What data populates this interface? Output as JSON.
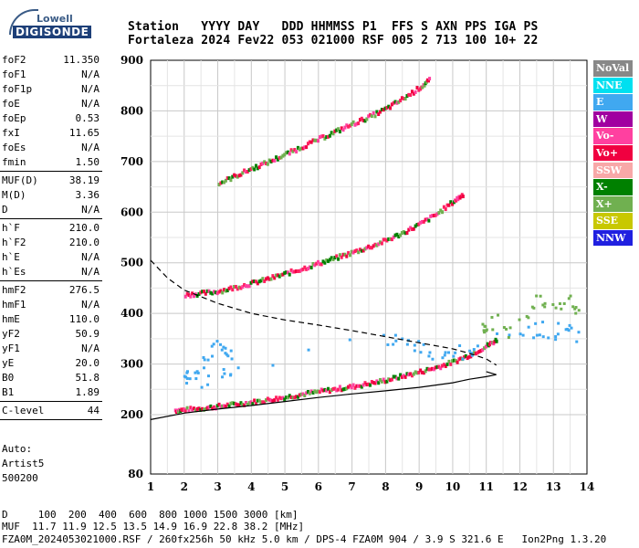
{
  "logo": {
    "line1": "Lowell",
    "line2": "DIGISONDE"
  },
  "header": {
    "line1": "Station   YYYY DAY   DDD HHMMSS P1  FFS S AXN PPS IGA PS",
    "line2": "Fortaleza 2024 Fev22 053 021000 RSF 005 2 713 100 10+ 22"
  },
  "params": [
    [
      {
        "k": "foF2",
        "v": "11.350"
      },
      {
        "k": "foF1",
        "v": "N/A"
      },
      {
        "k": "foF1p",
        "v": "N/A"
      },
      {
        "k": "foE",
        "v": "N/A"
      },
      {
        "k": "foEp",
        "v": "0.53"
      },
      {
        "k": "fxI",
        "v": "11.65"
      },
      {
        "k": "foEs",
        "v": "N/A"
      },
      {
        "k": "fmin",
        "v": "1.50"
      }
    ],
    [
      {
        "k": "MUF(D)",
        "v": "38.19"
      },
      {
        "k": "M(D)",
        "v": "3.36"
      },
      {
        "k": "D",
        "v": "N/A"
      }
    ],
    [
      {
        "k": "h`F",
        "v": "210.0"
      },
      {
        "k": "h`F2",
        "v": "210.0"
      },
      {
        "k": "h`E",
        "v": "N/A"
      },
      {
        "k": "h`Es",
        "v": "N/A"
      }
    ],
    [
      {
        "k": "hmF2",
        "v": "276.5"
      },
      {
        "k": "hmF1",
        "v": "N/A"
      },
      {
        "k": "hmE",
        "v": "110.0"
      },
      {
        "k": "yF2",
        "v": "50.9"
      },
      {
        "k": "yF1",
        "v": "N/A"
      },
      {
        "k": "yE",
        "v": "20.0"
      },
      {
        "k": "B0",
        "v": "51.8"
      },
      {
        "k": "B1",
        "v": "1.89"
      }
    ],
    [
      {
        "k": "C-level",
        "v": "44"
      }
    ]
  ],
  "auto": [
    "Auto:",
    "Artist5",
    "500200"
  ],
  "legend": [
    {
      "label": "NoVal",
      "color": "#888888"
    },
    {
      "label": "NNE",
      "color": "#00e0f0"
    },
    {
      "label": "E",
      "color": "#40a8f0"
    },
    {
      "label": "W",
      "color": "#a000a0"
    },
    {
      "label": "Vo-",
      "color": "#ff40a0"
    },
    {
      "label": "Vo+",
      "color": "#f00040"
    },
    {
      "label": "SSW",
      "color": "#f8a8a8"
    },
    {
      "label": "X-",
      "color": "#008000"
    },
    {
      "label": "X+",
      "color": "#70b050"
    },
    {
      "label": "SSE",
      "color": "#c8c800"
    },
    {
      "label": "NNW",
      "color": "#2020e0"
    }
  ],
  "footer": {
    "line1": "D     100  200  400  600  800 1000 1500 3000 [km]",
    "line2": "MUF  11.7 11.9 12.5 13.5 14.9 16.9 22.8 38.2 [MHz]",
    "line3": "FZA0M_2024053021000.RSF / 260fx256h 50 kHz 5.0 km / DPS-4 FZA0M 904 / 3.9 S 321.6 E   Ion2Png 1.3.20"
  },
  "chart_data": {
    "type": "scatter",
    "xlim": [
      1,
      14
    ],
    "ylim": [
      80,
      900
    ],
    "x_ticks": [
      1,
      2,
      3,
      4,
      5,
      6,
      7,
      8,
      9,
      10,
      11,
      12,
      13,
      14
    ],
    "y_ticks": [
      80,
      200,
      300,
      400,
      500,
      600,
      700,
      800,
      900
    ],
    "grid": true,
    "series": [
      {
        "key": "o_trace",
        "color": "#ff2060",
        "points": [
          [
            1.7,
            212
          ],
          [
            2.0,
            213
          ],
          [
            2.5,
            216
          ],
          [
            3.0,
            220
          ],
          [
            3.5,
            224
          ],
          [
            4.0,
            228
          ],
          [
            4.5,
            233
          ],
          [
            5.0,
            238
          ],
          [
            5.5,
            244
          ],
          [
            6.0,
            249
          ],
          [
            6.5,
            254
          ],
          [
            7.0,
            259
          ],
          [
            7.5,
            265
          ],
          [
            8.0,
            272
          ],
          [
            8.5,
            280
          ],
          [
            9.0,
            288
          ],
          [
            9.5,
            297
          ],
          [
            10.0,
            308
          ],
          [
            10.5,
            322
          ],
          [
            11.0,
            340
          ],
          [
            11.3,
            352
          ]
        ]
      },
      {
        "key": "o_multi2",
        "color": "#ff2060",
        "points": [
          [
            2.0,
            440
          ],
          [
            2.5,
            443
          ],
          [
            3.0,
            447
          ],
          [
            3.5,
            455
          ],
          [
            4.0,
            463
          ],
          [
            4.5,
            472
          ],
          [
            5.0,
            482
          ],
          [
            5.5,
            492
          ],
          [
            6.0,
            503
          ],
          [
            6.5,
            513
          ],
          [
            7.0,
            524
          ],
          [
            7.5,
            535
          ],
          [
            8.0,
            548
          ],
          [
            8.5,
            563
          ],
          [
            9.0,
            580
          ],
          [
            9.5,
            600
          ],
          [
            10.0,
            625
          ],
          [
            10.3,
            640
          ]
        ]
      },
      {
        "key": "o_multi3",
        "color": "#ff2060",
        "points": [
          [
            3.0,
            660
          ],
          [
            3.5,
            675
          ],
          [
            4.0,
            690
          ],
          [
            4.5,
            703
          ],
          [
            5.0,
            718
          ],
          [
            5.5,
            733
          ],
          [
            6.0,
            748
          ],
          [
            6.5,
            763
          ],
          [
            7.0,
            778
          ],
          [
            7.5,
            792
          ],
          [
            8.0,
            808
          ],
          [
            8.5,
            828
          ],
          [
            9.0,
            850
          ],
          [
            9.3,
            865
          ]
        ]
      },
      {
        "key": "e_cloud",
        "color": "#40a8f0",
        "points": [
          [
            1.9,
            270
          ],
          [
            2.1,
            290
          ],
          [
            2.3,
            280
          ],
          [
            2.5,
            310
          ],
          [
            2.8,
            330
          ],
          [
            3.0,
            345
          ],
          [
            3.2,
            320
          ],
          [
            3.5,
            305
          ],
          [
            2.6,
            265
          ],
          [
            3.3,
            280
          ],
          [
            8.0,
            355
          ],
          [
            8.4,
            345
          ],
          [
            8.8,
            340
          ],
          [
            9.2,
            330
          ],
          [
            9.6,
            325
          ],
          [
            10.0,
            320
          ],
          [
            10.4,
            330
          ],
          [
            10.8,
            345
          ],
          [
            12.2,
            360
          ],
          [
            12.5,
            375
          ],
          [
            12.8,
            365
          ],
          [
            13.2,
            370
          ],
          [
            13.5,
            380
          ],
          [
            13.8,
            355
          ]
        ]
      },
      {
        "key": "x_scatter",
        "color": "#70b050",
        "points": [
          [
            10.8,
            360
          ],
          [
            11.0,
            375
          ],
          [
            11.2,
            390
          ],
          [
            11.5,
            370
          ],
          [
            12.3,
            410
          ],
          [
            12.6,
            430
          ],
          [
            12.9,
            420
          ],
          [
            13.3,
            425
          ],
          [
            13.6,
            415
          ],
          [
            13.9,
            400
          ]
        ]
      }
    ],
    "curves": [
      {
        "key": "dashed_profile",
        "style": "dashed",
        "points": [
          [
            1.0,
            505
          ],
          [
            1.5,
            470
          ],
          [
            2.0,
            446
          ],
          [
            3.0,
            420
          ],
          [
            4.0,
            400
          ],
          [
            5.0,
            387
          ],
          [
            6.0,
            377
          ],
          [
            7.0,
            366
          ],
          [
            8.0,
            354
          ],
          [
            9.0,
            342
          ],
          [
            10.0,
            330
          ],
          [
            10.5,
            321
          ],
          [
            11.0,
            310
          ],
          [
            11.3,
            298
          ]
        ]
      },
      {
        "key": "solid_profile",
        "style": "solid",
        "points": [
          [
            1.0,
            190
          ],
          [
            2.0,
            203
          ],
          [
            3.0,
            211
          ],
          [
            4.0,
            218
          ],
          [
            5.0,
            226
          ],
          [
            6.0,
            234
          ],
          [
            7.0,
            241
          ],
          [
            8.0,
            247
          ],
          [
            9.0,
            254
          ],
          [
            10.0,
            263
          ],
          [
            10.5,
            270
          ],
          [
            11.0,
            275
          ],
          [
            11.3,
            279
          ],
          [
            11.0,
            285
          ]
        ]
      }
    ]
  }
}
